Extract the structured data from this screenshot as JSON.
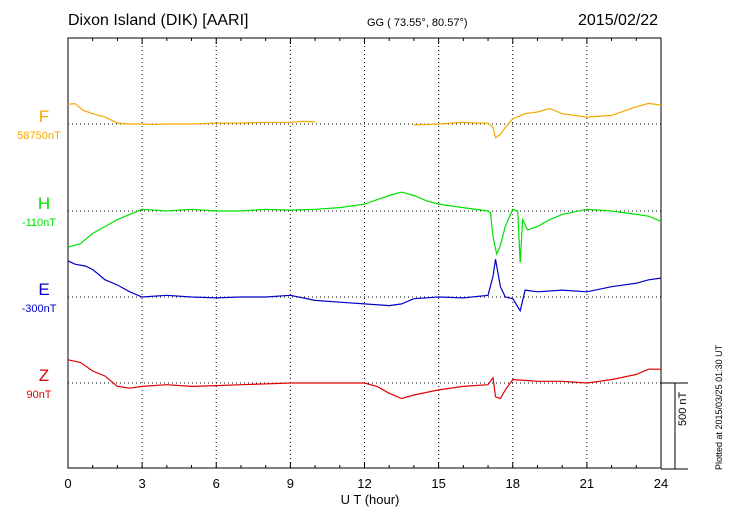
{
  "header": {
    "station": "Dixon Island (DIK)  [AARI]",
    "coords": "GG ( 73.55°,  80.57°)",
    "date": "2015/02/22"
  },
  "plotted_note": "Plotted at 2015/03/25 01:30 UT",
  "colors": {
    "F": "#f5a800",
    "H": "#00e000",
    "E": "#0000cc",
    "Z": "#e00000"
  },
  "chart_data": {
    "type": "line",
    "xlabel": "U T (hour)",
    "xlim": [
      0,
      24
    ],
    "xticks": [
      "0",
      "3",
      "6",
      "9",
      "12",
      "15",
      "18",
      "21",
      "24"
    ],
    "scale_bar_label": "500 nT",
    "scale_bar_nT": 500,
    "series": [
      {
        "name": "F",
        "baseline_label": "58750nT",
        "color": "#f5a800",
        "points": [
          [
            0,
            115
          ],
          [
            0.3,
            118
          ],
          [
            0.6,
            80
          ],
          [
            1,
            60
          ],
          [
            1.5,
            40
          ],
          [
            2,
            5
          ],
          [
            2.5,
            0
          ],
          [
            3,
            0
          ],
          [
            3.5,
            -3
          ],
          [
            4,
            0
          ],
          [
            5,
            0
          ],
          [
            6,
            5
          ],
          [
            7,
            5
          ],
          [
            8,
            10
          ],
          [
            9,
            10
          ],
          [
            9.5,
            15
          ],
          [
            10,
            12
          ],
          [
            14,
            -5
          ],
          [
            15,
            0
          ],
          [
            15.5,
            5
          ],
          [
            16,
            10
          ],
          [
            16.5,
            5
          ],
          [
            17,
            5
          ],
          [
            17.2,
            -20
          ],
          [
            17.3,
            -80
          ],
          [
            17.5,
            -60
          ],
          [
            17.7,
            -20
          ],
          [
            18,
            30
          ],
          [
            18.5,
            60
          ],
          [
            19,
            70
          ],
          [
            19.5,
            90
          ],
          [
            20,
            60
          ],
          [
            21,
            40
          ],
          [
            22,
            50
          ],
          [
            23,
            100
          ],
          [
            23.5,
            120
          ],
          [
            24,
            110
          ]
        ]
      },
      {
        "name": "H",
        "baseline_label": "-110nT",
        "color": "#00e000",
        "points": [
          [
            0,
            -210
          ],
          [
            0.5,
            -190
          ],
          [
            1,
            -130
          ],
          [
            1.5,
            -90
          ],
          [
            2,
            -50
          ],
          [
            2.5,
            -20
          ],
          [
            3,
            10
          ],
          [
            4,
            0
          ],
          [
            5,
            10
          ],
          [
            6,
            0
          ],
          [
            7,
            0
          ],
          [
            8,
            10
          ],
          [
            9,
            5
          ],
          [
            10,
            10
          ],
          [
            11,
            20
          ],
          [
            12,
            40
          ],
          [
            13,
            90
          ],
          [
            13.5,
            110
          ],
          [
            14,
            90
          ],
          [
            14.5,
            60
          ],
          [
            15,
            40
          ],
          [
            16,
            20
          ],
          [
            17,
            0
          ],
          [
            17.1,
            -10
          ],
          [
            17.2,
            -150
          ],
          [
            17.35,
            -250
          ],
          [
            17.5,
            -200
          ],
          [
            17.7,
            -90
          ],
          [
            18,
            10
          ],
          [
            18.2,
            0
          ],
          [
            18.3,
            -300
          ],
          [
            18.4,
            -50
          ],
          [
            18.6,
            -110
          ],
          [
            19,
            -90
          ],
          [
            19.5,
            -50
          ],
          [
            20,
            -20
          ],
          [
            21,
            10
          ],
          [
            22,
            0
          ],
          [
            23,
            -20
          ],
          [
            23.5,
            -30
          ],
          [
            24,
            -60
          ]
        ]
      },
      {
        "name": "E",
        "baseline_label": "-300nT",
        "color": "#0000cc",
        "points": [
          [
            0,
            210
          ],
          [
            0.3,
            190
          ],
          [
            0.7,
            180
          ],
          [
            1,
            160
          ],
          [
            1.5,
            100
          ],
          [
            2,
            70
          ],
          [
            2.5,
            30
          ],
          [
            3,
            0
          ],
          [
            4,
            10
          ],
          [
            5,
            0
          ],
          [
            6,
            -5
          ],
          [
            7,
            0
          ],
          [
            8,
            0
          ],
          [
            9,
            10
          ],
          [
            10,
            -20
          ],
          [
            11,
            -30
          ],
          [
            12,
            -40
          ],
          [
            13,
            -50
          ],
          [
            13.5,
            -40
          ],
          [
            14,
            -10
          ],
          [
            15,
            0
          ],
          [
            16,
            -5
          ],
          [
            17,
            10
          ],
          [
            17.2,
            120
          ],
          [
            17.3,
            220
          ],
          [
            17.5,
            60
          ],
          [
            17.7,
            0
          ],
          [
            18,
            -10
          ],
          [
            18.3,
            -80
          ],
          [
            18.5,
            40
          ],
          [
            19,
            30
          ],
          [
            20,
            40
          ],
          [
            21,
            30
          ],
          [
            22,
            60
          ],
          [
            23,
            80
          ],
          [
            23.5,
            100
          ],
          [
            24,
            110
          ]
        ]
      },
      {
        "name": "Z",
        "baseline_label": "90nT",
        "color": "#e00000",
        "points": [
          [
            0,
            135
          ],
          [
            0.5,
            120
          ],
          [
            1,
            70
          ],
          [
            1.5,
            40
          ],
          [
            2,
            -20
          ],
          [
            2.5,
            -30
          ],
          [
            3,
            -20
          ],
          [
            4,
            -10
          ],
          [
            5,
            -20
          ],
          [
            6,
            -15
          ],
          [
            7,
            -10
          ],
          [
            8,
            -5
          ],
          [
            9,
            0
          ],
          [
            10,
            0
          ],
          [
            11,
            0
          ],
          [
            12,
            0
          ],
          [
            12.5,
            -20
          ],
          [
            13,
            -60
          ],
          [
            13.5,
            -90
          ],
          [
            14,
            -70
          ],
          [
            15,
            -40
          ],
          [
            16,
            -20
          ],
          [
            17,
            -10
          ],
          [
            17.2,
            30
          ],
          [
            17.3,
            -80
          ],
          [
            17.5,
            -90
          ],
          [
            17.7,
            -40
          ],
          [
            18,
            20
          ],
          [
            18.5,
            15
          ],
          [
            19,
            10
          ],
          [
            20,
            10
          ],
          [
            21,
            0
          ],
          [
            22,
            20
          ],
          [
            23,
            50
          ],
          [
            23.5,
            80
          ],
          [
            24,
            80
          ]
        ]
      }
    ]
  }
}
